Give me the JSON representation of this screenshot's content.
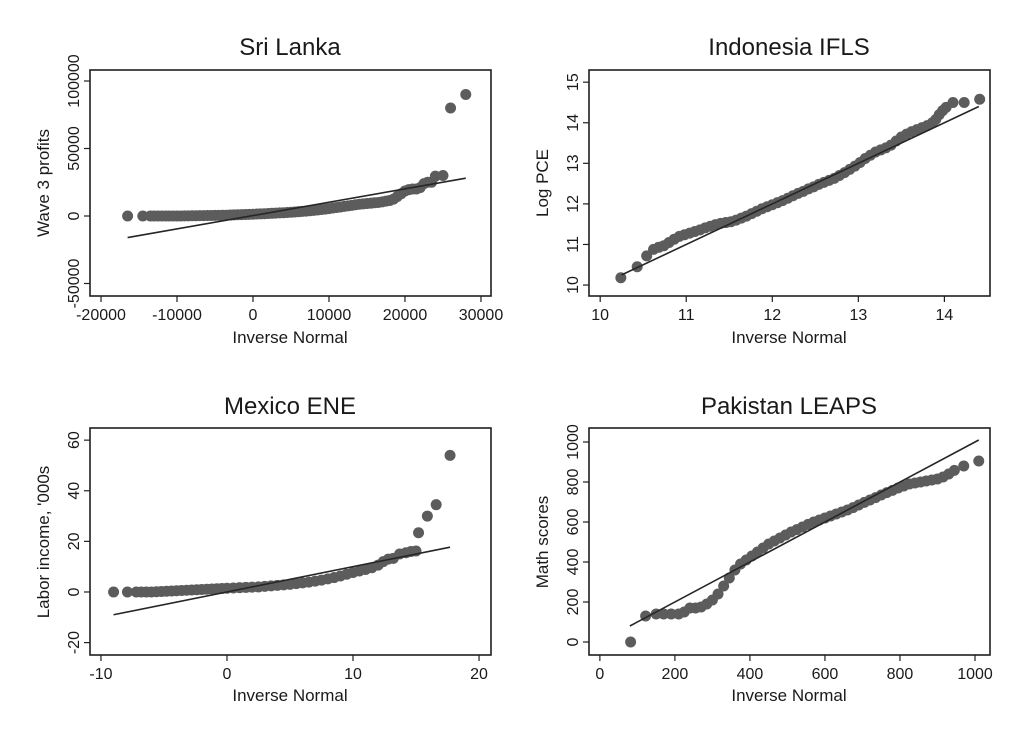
{
  "chart_data": [
    {
      "type": "scatter",
      "title": "Sri Lanka",
      "xlabel": "Inverse Normal",
      "ylabel": "Wave 3 profits",
      "xlim": [
        -21450,
        31320
      ],
      "ylim": [
        -59260,
        108150
      ],
      "xticks": [
        -20000,
        -10000,
        0,
        10000,
        20000,
        30000
      ],
      "xtick_labels": [
        "-20000",
        "-10000",
        "0",
        "10000",
        "20000",
        "30000"
      ],
      "yticks": [
        -50000,
        0,
        50000,
        100000
      ],
      "ytick_labels": [
        "-50000",
        "0",
        "50000",
        "100000"
      ],
      "grid": false,
      "reference_line": [
        [
          -16500,
          -16000
        ],
        [
          28000,
          28000
        ]
      ],
      "points": [
        [
          -16500,
          0
        ],
        [
          -14500,
          0
        ],
        [
          -13500,
          0
        ],
        [
          -13000,
          0
        ],
        [
          -12500,
          0
        ],
        [
          -12000,
          0
        ],
        [
          -11500,
          0
        ],
        [
          -11000,
          0
        ],
        [
          -10500,
          0
        ],
        [
          -10000,
          0
        ],
        [
          -9500,
          0
        ],
        [
          -9000,
          100
        ],
        [
          -8500,
          100
        ],
        [
          -8000,
          150
        ],
        [
          -7500,
          200
        ],
        [
          -7000,
          250
        ],
        [
          -6500,
          300
        ],
        [
          -6000,
          350
        ],
        [
          -5500,
          400
        ],
        [
          -5000,
          450
        ],
        [
          -4500,
          500
        ],
        [
          -4000,
          550
        ],
        [
          -3500,
          600
        ],
        [
          -3000,
          700
        ],
        [
          -2500,
          800
        ],
        [
          -2000,
          900
        ],
        [
          -1500,
          1000
        ],
        [
          -1000,
          1100
        ],
        [
          -500,
          1200
        ],
        [
          0,
          1300
        ],
        [
          500,
          1450
        ],
        [
          1000,
          1600
        ],
        [
          1500,
          1700
        ],
        [
          2000,
          1850
        ],
        [
          2500,
          2000
        ],
        [
          3000,
          2150
        ],
        [
          3500,
          2300
        ],
        [
          4000,
          2450
        ],
        [
          4500,
          2600
        ],
        [
          5000,
          2800
        ],
        [
          5500,
          3000
        ],
        [
          6000,
          3200
        ],
        [
          6500,
          3400
        ],
        [
          7000,
          3600
        ],
        [
          7500,
          3900
        ],
        [
          8000,
          4200
        ],
        [
          8500,
          4500
        ],
        [
          9000,
          4800
        ],
        [
          9500,
          5100
        ],
        [
          10000,
          5500
        ],
        [
          10500,
          5900
        ],
        [
          11000,
          6300
        ],
        [
          11500,
          6700
        ],
        [
          12000,
          7100
        ],
        [
          12500,
          7500
        ],
        [
          13000,
          7900
        ],
        [
          13500,
          8300
        ],
        [
          14000,
          8700
        ],
        [
          14500,
          9000
        ],
        [
          15000,
          9300
        ],
        [
          15500,
          9500
        ],
        [
          16000,
          9800
        ],
        [
          16500,
          10000
        ],
        [
          17000,
          10500
        ],
        [
          17500,
          11000
        ],
        [
          18000,
          11500
        ],
        [
          18500,
          12500
        ],
        [
          19000,
          14500
        ],
        [
          19500,
          16500
        ],
        [
          20000,
          18500
        ],
        [
          20500,
          19500
        ],
        [
          21000,
          20000
        ],
        [
          21500,
          20000
        ],
        [
          22000,
          21000
        ],
        [
          22500,
          24000
        ],
        [
          23000,
          25000
        ],
        [
          23500,
          25000
        ],
        [
          24000,
          29500
        ],
        [
          25000,
          30000
        ],
        [
          26000,
          80000
        ],
        [
          28000,
          90000
        ]
      ]
    },
    {
      "type": "scatter",
      "title": "Indonesia IFLS",
      "xlabel": "Inverse Normal",
      "ylabel": "Log PCE",
      "xlim": [
        9.87,
        14.53
      ],
      "ylim": [
        9.73,
        15.3
      ],
      "xticks": [
        10,
        11,
        12,
        13,
        14
      ],
      "xtick_labels": [
        "10",
        "11",
        "12",
        "13",
        "14"
      ],
      "yticks": [
        10,
        11,
        12,
        13,
        14,
        15
      ],
      "ytick_labels": [
        "10",
        "11",
        "12",
        "13",
        "14",
        "15"
      ],
      "grid": false,
      "reference_line": [
        [
          10.25,
          10.25
        ],
        [
          14.4,
          14.4
        ]
      ],
      "points": [
        [
          10.24,
          10.18
        ],
        [
          10.43,
          10.45
        ],
        [
          10.54,
          10.72
        ],
        [
          10.62,
          10.88
        ],
        [
          10.68,
          10.93
        ],
        [
          10.74,
          10.97
        ],
        [
          10.8,
          11.05
        ],
        [
          10.86,
          11.13
        ],
        [
          10.92,
          11.2
        ],
        [
          10.98,
          11.24
        ],
        [
          11.04,
          11.28
        ],
        [
          11.1,
          11.32
        ],
        [
          11.16,
          11.36
        ],
        [
          11.22,
          11.41
        ],
        [
          11.28,
          11.45
        ],
        [
          11.34,
          11.49
        ],
        [
          11.4,
          11.52
        ],
        [
          11.46,
          11.54
        ],
        [
          11.52,
          11.56
        ],
        [
          11.58,
          11.6
        ],
        [
          11.64,
          11.65
        ],
        [
          11.7,
          11.7
        ],
        [
          11.76,
          11.76
        ],
        [
          11.82,
          11.82
        ],
        [
          11.88,
          11.88
        ],
        [
          11.94,
          11.93
        ],
        [
          12.0,
          11.98
        ],
        [
          12.06,
          12.03
        ],
        [
          12.12,
          12.08
        ],
        [
          12.18,
          12.14
        ],
        [
          12.24,
          12.2
        ],
        [
          12.3,
          12.26
        ],
        [
          12.36,
          12.31
        ],
        [
          12.42,
          12.37
        ],
        [
          12.48,
          12.42
        ],
        [
          12.54,
          12.48
        ],
        [
          12.6,
          12.53
        ],
        [
          12.66,
          12.58
        ],
        [
          12.72,
          12.63
        ],
        [
          12.78,
          12.7
        ],
        [
          12.84,
          12.77
        ],
        [
          12.9,
          12.85
        ],
        [
          12.96,
          12.93
        ],
        [
          13.02,
          13.02
        ],
        [
          13.08,
          13.12
        ],
        [
          13.14,
          13.2
        ],
        [
          13.2,
          13.28
        ],
        [
          13.26,
          13.33
        ],
        [
          13.32,
          13.38
        ],
        [
          13.38,
          13.45
        ],
        [
          13.44,
          13.55
        ],
        [
          13.5,
          13.65
        ],
        [
          13.56,
          13.72
        ],
        [
          13.62,
          13.78
        ],
        [
          13.68,
          13.83
        ],
        [
          13.74,
          13.88
        ],
        [
          13.8,
          13.93
        ],
        [
          13.86,
          14.0
        ],
        [
          13.9,
          14.08
        ],
        [
          13.94,
          14.2
        ],
        [
          13.98,
          14.3
        ],
        [
          14.02,
          14.38
        ],
        [
          14.1,
          14.5
        ],
        [
          14.23,
          14.5
        ],
        [
          14.41,
          14.58
        ]
      ]
    },
    {
      "type": "scatter",
      "title": "Mexico ENE",
      "xlabel": "Inverse Normal",
      "ylabel": "Labor income, '000s",
      "xlim": [
        -10.87,
        20.95
      ],
      "ylim": [
        -24.9,
        64.8
      ],
      "xticks": [
        -10,
        0,
        10,
        20
      ],
      "xtick_labels": [
        "-10",
        "0",
        "10",
        "20"
      ],
      "yticks": [
        -20,
        0,
        20,
        40,
        60
      ],
      "ytick_labels": [
        "-20",
        "0",
        "20",
        "40",
        "60"
      ],
      "grid": false,
      "reference_line": [
        [
          -9,
          -9
        ],
        [
          17.7,
          17.7
        ]
      ],
      "points": [
        [
          -9.0,
          0
        ],
        [
          -7.9,
          0
        ],
        [
          -7.2,
          0
        ],
        [
          -6.8,
          0
        ],
        [
          -6.4,
          0
        ],
        [
          -6.0,
          0
        ],
        [
          -5.6,
          0.1
        ],
        [
          -5.2,
          0.2
        ],
        [
          -4.8,
          0.3
        ],
        [
          -4.4,
          0.4
        ],
        [
          -4.0,
          0.5
        ],
        [
          -3.6,
          0.6
        ],
        [
          -3.2,
          0.7
        ],
        [
          -2.8,
          0.8
        ],
        [
          -2.4,
          0.9
        ],
        [
          -2.0,
          1.0
        ],
        [
          -1.6,
          1.1
        ],
        [
          -1.2,
          1.2
        ],
        [
          -0.8,
          1.3
        ],
        [
          -0.4,
          1.4
        ],
        [
          0.0,
          1.5
        ],
        [
          0.5,
          1.6
        ],
        [
          1.0,
          1.7
        ],
        [
          1.5,
          1.8
        ],
        [
          2.0,
          1.9
        ],
        [
          2.5,
          2.0
        ],
        [
          3.0,
          2.2
        ],
        [
          3.5,
          2.4
        ],
        [
          4.0,
          2.6
        ],
        [
          4.5,
          2.8
        ],
        [
          5.0,
          3.0
        ],
        [
          5.5,
          3.3
        ],
        [
          6.0,
          3.6
        ],
        [
          6.5,
          3.9
        ],
        [
          7.0,
          4.3
        ],
        [
          7.5,
          4.7
        ],
        [
          8.0,
          5.2
        ],
        [
          8.5,
          5.7
        ],
        [
          9.0,
          6.3
        ],
        [
          9.5,
          7.0
        ],
        [
          10.0,
          7.7
        ],
        [
          10.5,
          8.3
        ],
        [
          11.0,
          8.9
        ],
        [
          11.5,
          9.6
        ],
        [
          12.0,
          10.6
        ],
        [
          12.4,
          12.0
        ],
        [
          12.8,
          13.0
        ],
        [
          13.2,
          13.3
        ],
        [
          13.7,
          15.0
        ],
        [
          14.2,
          15.5
        ],
        [
          14.6,
          16.0
        ],
        [
          15.0,
          16.2
        ],
        [
          15.2,
          23.4
        ],
        [
          15.9,
          30.0
        ],
        [
          16.6,
          34.5
        ],
        [
          17.7,
          54.0
        ]
      ]
    },
    {
      "type": "scatter",
      "title": "Pakistan LEAPS",
      "xlabel": "Inverse Normal",
      "ylabel": "Math scores",
      "xlim": [
        -29,
        1040
      ],
      "ylim": [
        -65,
        1070
      ],
      "xticks": [
        0,
        200,
        400,
        600,
        800,
        1000
      ],
      "xtick_labels": [
        "0",
        "200",
        "400",
        "600",
        "800",
        "1000"
      ],
      "yticks": [
        0,
        200,
        400,
        600,
        800,
        1000
      ],
      "ytick_labels": [
        "0",
        "200",
        "400",
        "600",
        "800",
        "1000"
      ],
      "grid": false,
      "reference_line": [
        [
          80,
          80
        ],
        [
          1010,
          1010
        ]
      ],
      "points": [
        [
          82,
          0
        ],
        [
          122,
          130
        ],
        [
          150,
          140
        ],
        [
          170,
          140
        ],
        [
          190,
          140
        ],
        [
          210,
          140
        ],
        [
          225,
          150
        ],
        [
          240,
          170
        ],
        [
          255,
          170
        ],
        [
          270,
          175
        ],
        [
          285,
          190
        ],
        [
          300,
          210
        ],
        [
          315,
          240
        ],
        [
          330,
          280
        ],
        [
          345,
          320
        ],
        [
          360,
          360
        ],
        [
          375,
          390
        ],
        [
          390,
          410
        ],
        [
          405,
          430
        ],
        [
          420,
          450
        ],
        [
          435,
          470
        ],
        [
          450,
          490
        ],
        [
          465,
          505
        ],
        [
          480,
          520
        ],
        [
          495,
          535
        ],
        [
          510,
          550
        ],
        [
          525,
          562
        ],
        [
          540,
          575
        ],
        [
          555,
          588
        ],
        [
          570,
          600
        ],
        [
          585,
          610
        ],
        [
          600,
          620
        ],
        [
          615,
          630
        ],
        [
          630,
          640
        ],
        [
          645,
          650
        ],
        [
          660,
          660
        ],
        [
          675,
          672
        ],
        [
          690,
          685
        ],
        [
          705,
          698
        ],
        [
          720,
          710
        ],
        [
          735,
          722
        ],
        [
          750,
          735
        ],
        [
          765,
          747
        ],
        [
          780,
          758
        ],
        [
          795,
          770
        ],
        [
          810,
          780
        ],
        [
          825,
          790
        ],
        [
          840,
          795
        ],
        [
          855,
          800
        ],
        [
          870,
          805
        ],
        [
          885,
          810
        ],
        [
          900,
          815
        ],
        [
          915,
          825
        ],
        [
          930,
          840
        ],
        [
          945,
          858
        ],
        [
          970,
          880
        ],
        [
          1010,
          905
        ]
      ]
    }
  ]
}
